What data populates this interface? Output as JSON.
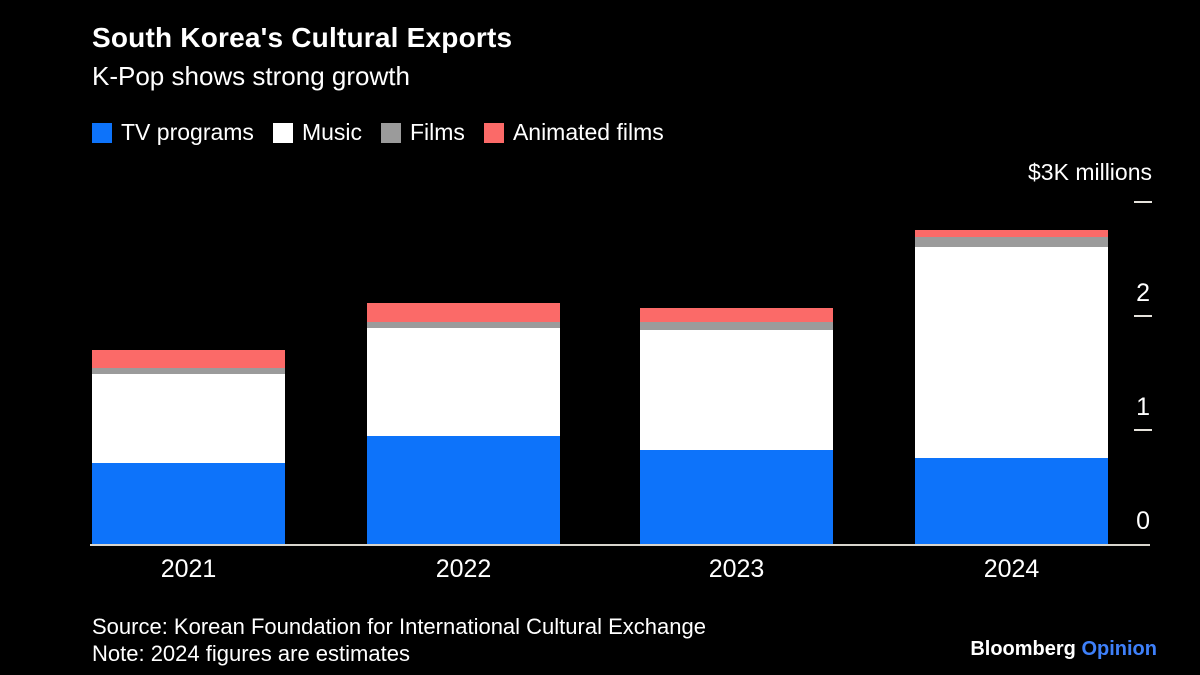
{
  "header": {
    "title": "South Korea's Cultural Exports",
    "subtitle": "K-Pop shows strong growth"
  },
  "axis": {
    "unit_label": "$3K millions"
  },
  "chart_data": {
    "type": "bar",
    "stacked": true,
    "title": "South Korea's Cultural Exports",
    "subtitle": "K-Pop shows strong growth",
    "categories": [
      "2021",
      "2022",
      "2023",
      "2024"
    ],
    "series": [
      {
        "name": "TV programs",
        "color": "#0d73fa",
        "values": [
          0.72,
          0.96,
          0.83,
          0.76
        ]
      },
      {
        "name": "Music",
        "color": "#ffffff",
        "values": [
          0.78,
          0.94,
          1.06,
          1.85
        ]
      },
      {
        "name": "Films",
        "color": "#9b9b9b",
        "values": [
          0.05,
          0.06,
          0.07,
          0.09
        ]
      },
      {
        "name": "Animated films",
        "color": "#fb6a68",
        "values": [
          0.16,
          0.16,
          0.12,
          0.06
        ]
      }
    ],
    "ylabel": "$3K millions",
    "ylim": [
      0,
      3
    ],
    "yticks": [
      0,
      1,
      2,
      3
    ],
    "ytick_labels": [
      "0",
      "1",
      "2",
      ""
    ],
    "legend_position": "top-left",
    "grid": false,
    "background": "#000000"
  },
  "style": {
    "bar_blue": "#0d73fa",
    "bar_white": "#ffffff",
    "bar_gray": "#9b9b9b",
    "bar_red": "#fb6a68",
    "axis_line": "#d8d5cd",
    "text": "#ffffff",
    "opinion_blue": "#3e80fa",
    "background": "#000000"
  },
  "footer": {
    "source": "Source: Korean Foundation for International Cultural Exchange",
    "note": "Note: 2024 figures are estimates",
    "brand": {
      "bloomberg": "Bloomberg",
      "opinion": "Opinion"
    }
  }
}
